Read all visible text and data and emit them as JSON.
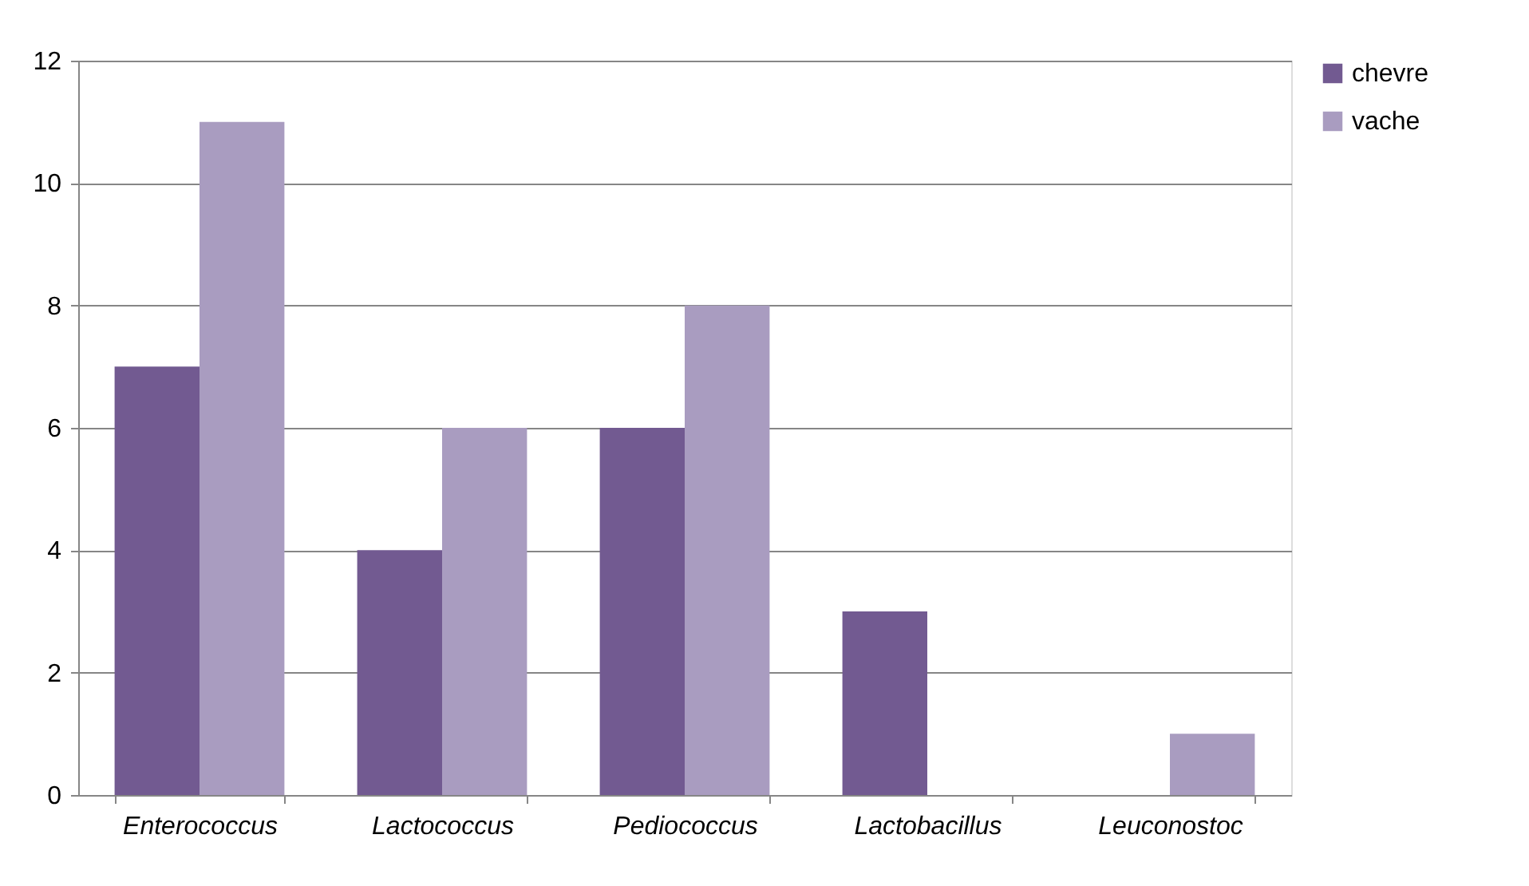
{
  "chart_data": {
    "type": "bar",
    "categories": [
      "Enterococcus",
      "Lactococcus",
      "Pediococcus",
      "Lactobacillus",
      "Leuconostoc"
    ],
    "series": [
      {
        "name": "chevre",
        "color": "#725a91",
        "values": [
          7,
          4,
          6,
          3,
          0
        ]
      },
      {
        "name": "vache",
        "color": "#a99cc0",
        "values": [
          11,
          6,
          8,
          0,
          1
        ]
      }
    ],
    "ylim": [
      0,
      12
    ],
    "yticks": [
      0,
      2,
      4,
      6,
      8,
      10,
      12
    ],
    "grid": "y",
    "legend": "right"
  }
}
